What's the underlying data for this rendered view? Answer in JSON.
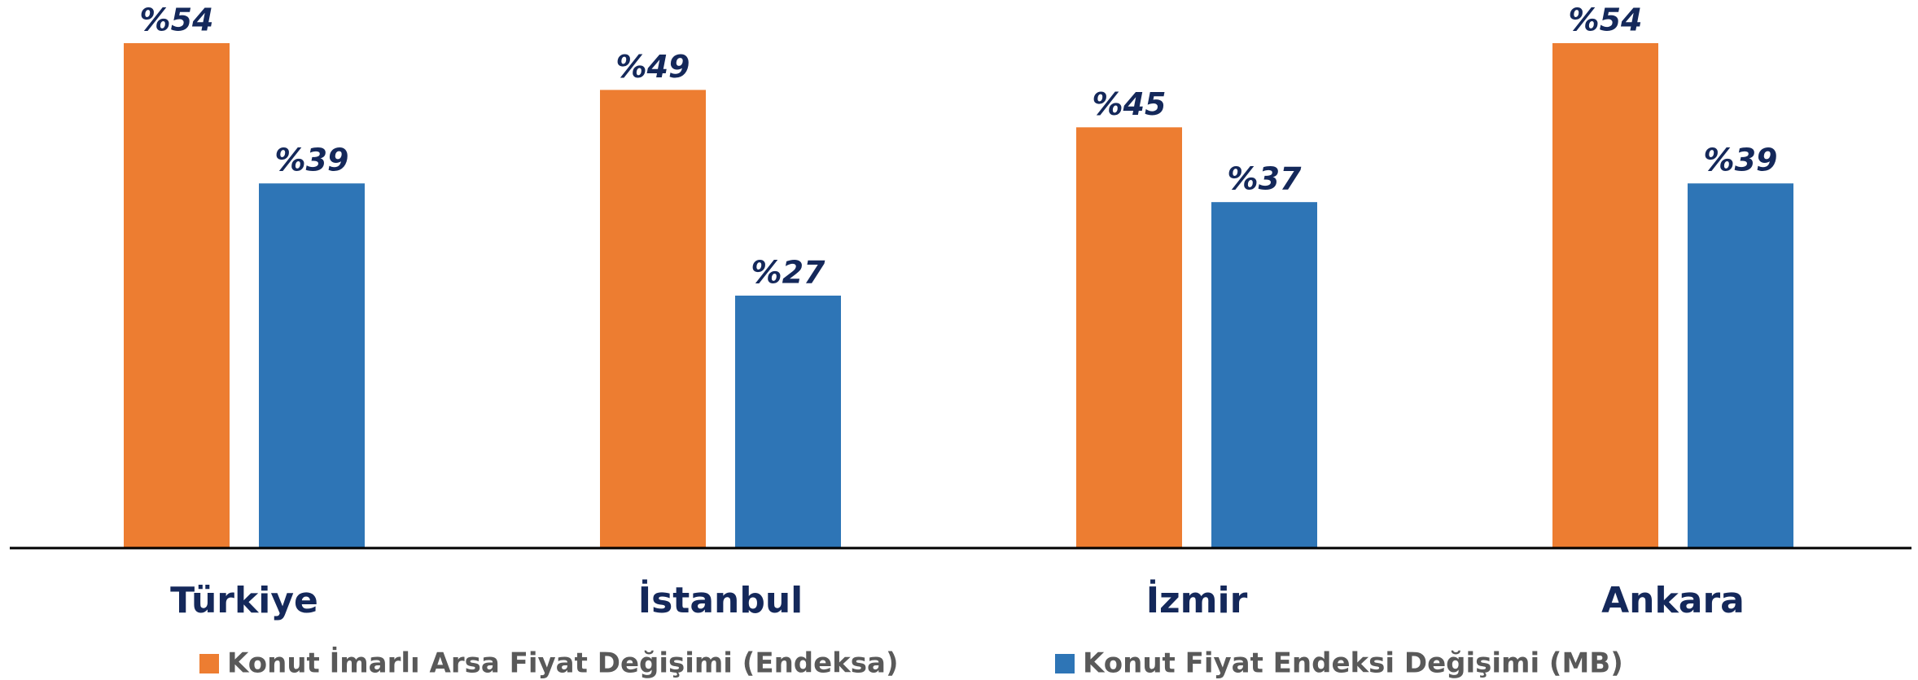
{
  "chart_data": {
    "type": "bar",
    "categories": [
      "Türkiye",
      "İstanbul",
      "İzmir",
      "Ankara"
    ],
    "series": [
      {
        "name": "Konut İmarlı Arsa Fiyat Değişimi (Endeksa)",
        "color": "#ED7D31",
        "values": [
          54,
          49,
          45,
          54
        ],
        "value_labels": [
          "%54",
          "%49",
          "%45",
          "%54"
        ]
      },
      {
        "name": "Konut Fiyat Endeksi Değişimi (MB)",
        "color": "#2E75B6",
        "values": [
          39,
          27,
          37,
          39
        ],
        "value_labels": [
          "%39",
          "%27",
          "%37",
          "%39"
        ]
      }
    ]
  }
}
